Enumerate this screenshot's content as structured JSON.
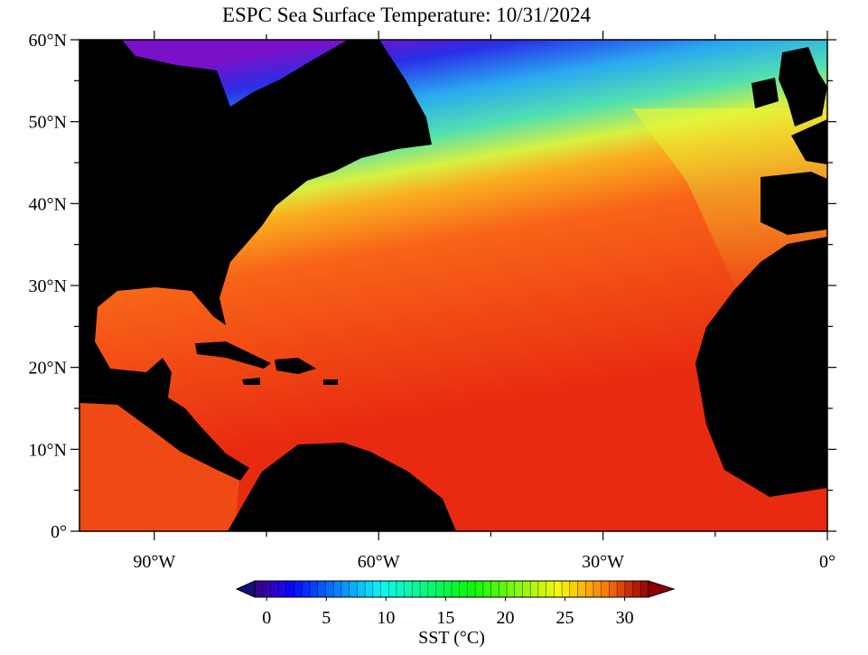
{
  "map": {
    "title": "ESPC Sea Surface Temperature: 10/31/2024",
    "xlim": [
      -100,
      0
    ],
    "ylim": [
      0,
      60
    ],
    "xticks": [
      {
        "value": -90,
        "label": "90°W"
      },
      {
        "value": -60,
        "label": "60°W"
      },
      {
        "value": -30,
        "label": "30°W"
      },
      {
        "value": 0,
        "label": "0°"
      }
    ],
    "yticks": [
      {
        "value": 0,
        "label": "0°"
      },
      {
        "value": 10,
        "label": "10°N"
      },
      {
        "value": 20,
        "label": "20°N"
      },
      {
        "value": 30,
        "label": "30°N"
      },
      {
        "value": 40,
        "label": "40°N"
      },
      {
        "value": 50,
        "label": "50°N"
      },
      {
        "value": 60,
        "label": "60°N"
      }
    ],
    "colorbar": {
      "label": "SST (°C)",
      "range": [
        -1,
        32
      ],
      "ticks": [
        0,
        5,
        10,
        15,
        20,
        25,
        30
      ]
    }
  }
}
